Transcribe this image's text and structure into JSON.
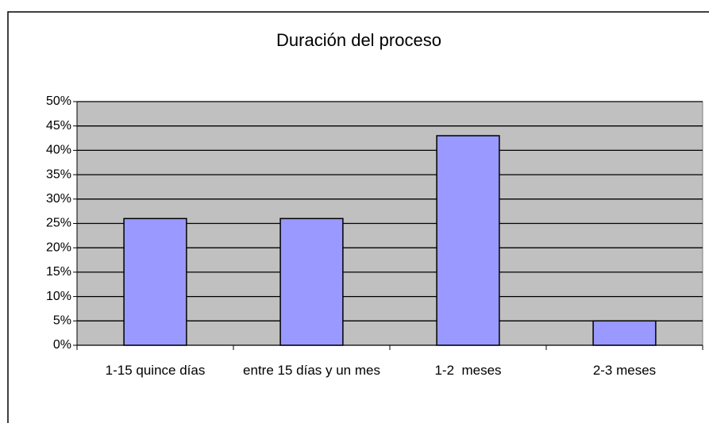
{
  "chart_data": {
    "type": "bar",
    "title": "Duración del proceso",
    "categories": [
      "1-15 quince días",
      "entre 15 días y un mes",
      "1-2  meses",
      "2-3 meses"
    ],
    "values": [
      26,
      26,
      43,
      5
    ],
    "color": "#9999ff",
    "ylim": [
      0,
      50
    ],
    "yticks": [
      {
        "value": 0,
        "label": "0%"
      },
      {
        "value": 5,
        "label": "5%"
      },
      {
        "value": 10,
        "label": "10%"
      },
      {
        "value": 15,
        "label": "15%"
      },
      {
        "value": 20,
        "label": "20%"
      },
      {
        "value": 25,
        "label": "25%"
      },
      {
        "value": 30,
        "label": "30%"
      },
      {
        "value": 35,
        "label": "35%"
      },
      {
        "value": 40,
        "label": "40%"
      },
      {
        "value": 45,
        "label": "45%"
      },
      {
        "value": 50,
        "label": "50%"
      }
    ],
    "grid": true
  }
}
